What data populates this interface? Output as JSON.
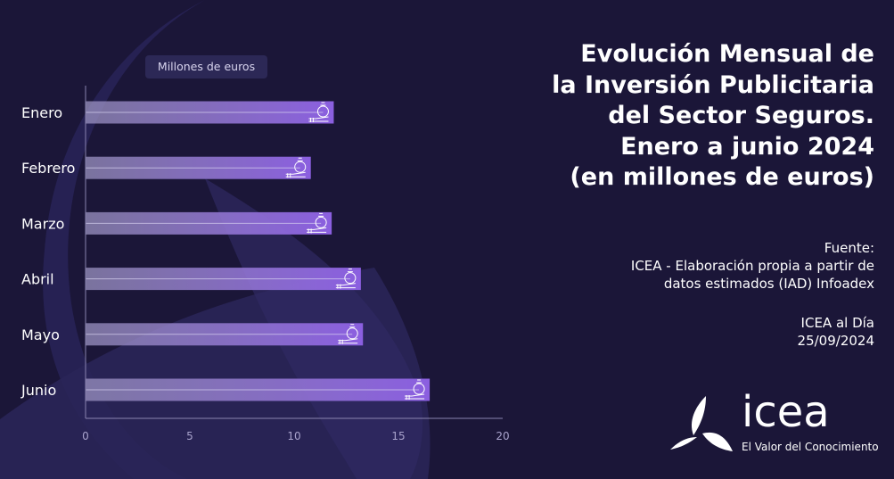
{
  "title": "Evolución Mensual de la Inversión Publicitaria del Sector Seguros. Enero a junio 2024 (en millones de euros)",
  "title_lines": [
    "Evolución Mensual de",
    "la Inversión Publicitaria",
    "del Sector Seguros.",
    "Enero a junio 2024",
    "(en millones de euros)"
  ],
  "source": {
    "label": "Fuente:",
    "line1": "ICEA - Elaboración propia a partir de",
    "line2": "datos estimados (IAD) Infoadex"
  },
  "publication": {
    "name": "ICEA al Día",
    "date": "25/09/2024"
  },
  "logo": {
    "word": "icea",
    "tagline": "El Valor del Conocimiento"
  },
  "colors": {
    "background": "#1b1638",
    "bar_start": "#8e84b8",
    "bar_end": "#8b5fe0",
    "axis": "#8a84b0"
  },
  "chart_data": {
    "type": "bar",
    "orientation": "horizontal",
    "unit_label": "Millones de euros",
    "categories": [
      "Enero",
      "Febrero",
      "Marzo",
      "Abril",
      "Mayo",
      "Junio"
    ],
    "values": [
      11.9,
      10.8,
      11.8,
      13.2,
      13.3,
      16.5
    ],
    "xlim": [
      0,
      20
    ],
    "xticks": [
      0,
      5,
      10,
      15,
      20
    ],
    "grid": false,
    "bar_icon": "money-bag-hand-icon"
  }
}
